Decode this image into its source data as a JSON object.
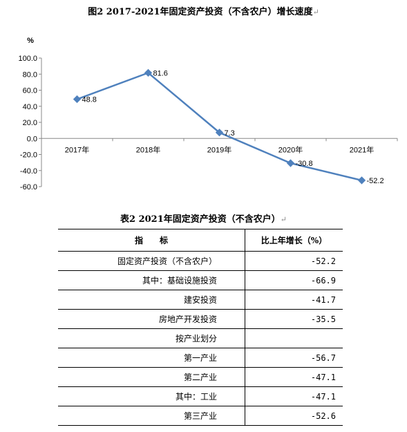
{
  "figure": {
    "title": "图2 2017-2021年固定资产投资（不含农户）增长速度",
    "mark": "↵"
  },
  "chart_data": {
    "type": "line",
    "ylabel": "%",
    "categories": [
      "2017年",
      "2018年",
      "2019年",
      "2020年",
      "2021年"
    ],
    "series": [
      {
        "values": [
          48.8,
          81.6,
          7.3,
          -30.8,
          -52.2
        ]
      }
    ],
    "data_labels": [
      "48.8",
      "81.6",
      "7.3",
      "-30.8",
      "-52.2"
    ],
    "yticks": [
      "100.0",
      "80.0",
      "60.0",
      "40.0",
      "20.0",
      "0.0",
      "-20.0",
      "-40.0",
      "-60.0"
    ],
    "ylim": [
      -60,
      100
    ],
    "grid": false,
    "legend": "none",
    "line_color": "#4F81BD"
  },
  "table": {
    "title": "表2 2021年固定资产投资（不含农户）",
    "header": {
      "col1": "指　　标",
      "col2": "比上年增长（%）"
    },
    "rows": [
      {
        "name": "固定资产投资（不含农户）",
        "value": "-52.2"
      },
      {
        "name": "其中：基础设施投资",
        "value": "-66.9"
      },
      {
        "name": "建安投资",
        "value": "-41.7"
      },
      {
        "name": "房地产开发投资",
        "value": "-35.5"
      },
      {
        "name": "按产业划分",
        "value": ""
      },
      {
        "name": "第一产业",
        "value": "-56.7"
      },
      {
        "name": "第二产业",
        "value": "-47.1"
      },
      {
        "name": "其中：工业",
        "value": "-47.1"
      },
      {
        "name": "第三产业",
        "value": "-52.6"
      }
    ]
  }
}
